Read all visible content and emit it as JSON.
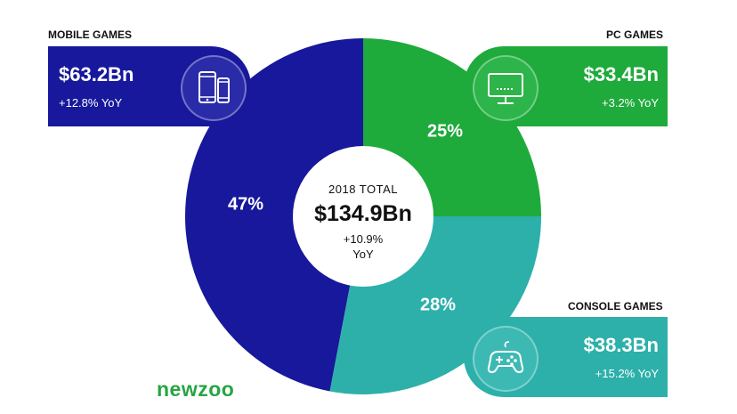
{
  "chart_data": {
    "type": "pie",
    "donut": true,
    "categories": [
      "Mobile Games",
      "PC Games",
      "Console Games"
    ],
    "values": [
      47,
      25,
      28
    ],
    "value_labels": [
      "47%",
      "25%",
      "28%"
    ],
    "colors": [
      "#17189b",
      "#1faa3c",
      "#2db0aa"
    ],
    "center": {
      "label": "2018 TOTAL",
      "total": "$134.9Bn",
      "yoy_line1": "+10.9%",
      "yoy_line2": "YoY"
    }
  },
  "segments": {
    "mobile": {
      "title": "MOBILE GAMES",
      "amount": "$63.2Bn",
      "yoy": "+12.8% YoY",
      "color": "#17189b",
      "icon": "smartphone-tablet-icon"
    },
    "pc": {
      "title": "PC GAMES",
      "amount": "$33.4Bn",
      "yoy": "+3.2% YoY",
      "color": "#1faa3c",
      "icon": "monitor-icon"
    },
    "console": {
      "title": "CONSOLE GAMES",
      "amount": "$38.3Bn",
      "yoy": "+15.2% YoY",
      "color": "#2db0aa",
      "icon": "gamepad-icon"
    }
  },
  "brand": {
    "logo": "newzoo",
    "color": "#27a542"
  }
}
